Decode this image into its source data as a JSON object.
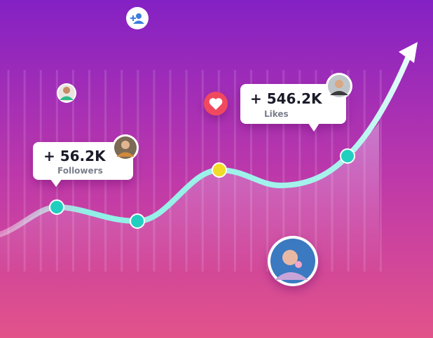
{
  "callouts": [
    {
      "value": "+ 56.2K",
      "label": "Followers"
    },
    {
      "value": "+ 546.2K",
      "label": "Likes"
    }
  ]
}
